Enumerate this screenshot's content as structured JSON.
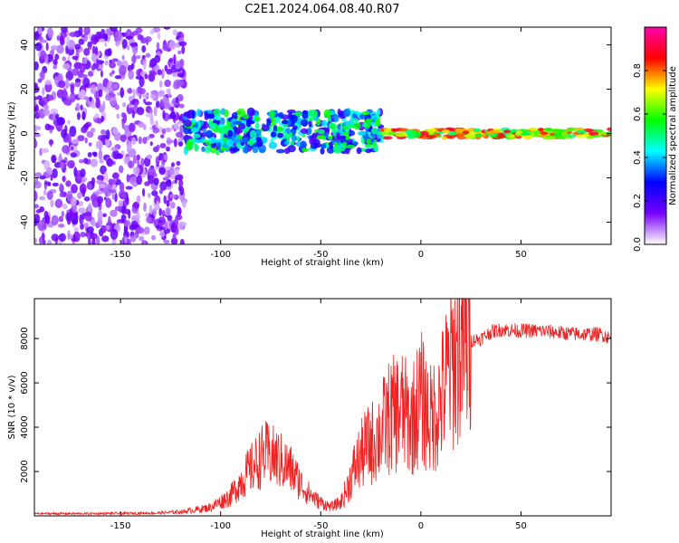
{
  "title": "C2E1.2024.064.08.40.R07",
  "chart_data": [
    {
      "type": "heatmap",
      "xlabel": "Height of straight line (km)",
      "ylabel": "Frequency (Hz)",
      "xlim": [
        -193,
        95
      ],
      "ylim": [
        -50,
        48
      ],
      "xticks": [
        -150,
        -100,
        -50,
        0,
        50
      ],
      "yticks": [
        -40,
        -20,
        0,
        20,
        40
      ],
      "grid": false,
      "colorbar": {
        "label": "Normalized spectral amplitude",
        "range": [
          0,
          1
        ],
        "ticks": [
          0.0,
          0.2,
          0.4,
          0.6,
          0.8
        ],
        "colors": [
          "#ffffff",
          "#7700ff",
          "#0000ff",
          "#00ffff",
          "#00ff00",
          "#ffff00",
          "#ff0000",
          "#ff00aa"
        ]
      },
      "regions": [
        {
          "x": [
            -193,
            -118
          ],
          "freq": [
            -50,
            48
          ],
          "amplitude": 0.1,
          "pattern": "noise"
        },
        {
          "x": [
            -118,
            -20
          ],
          "freq": [
            -8,
            10
          ],
          "amplitude": 0.35,
          "pattern": "band"
        },
        {
          "x": [
            -20,
            95
          ],
          "freq": [
            -2,
            2
          ],
          "amplitude": 0.7,
          "pattern": "carrier"
        }
      ]
    },
    {
      "type": "line",
      "xlabel": "Height of straight line (km)",
      "ylabel": "SNR (10 * v/v)",
      "xlim": [
        -193,
        95
      ],
      "ylim": [
        0,
        9800
      ],
      "xticks": [
        -150,
        -100,
        -50,
        0,
        50
      ],
      "yticks": [
        2000,
        4000,
        6000,
        8000
      ],
      "grid": false,
      "color": "#ee2222",
      "x": [
        -193,
        -170,
        -150,
        -130,
        -118,
        -105,
        -95,
        -88,
        -82,
        -78,
        -72,
        -65,
        -58,
        -52,
        -45,
        -40,
        -37,
        -33,
        -28,
        -22,
        -16,
        -10,
        -5,
        0,
        5,
        10,
        15,
        20,
        25,
        30,
        35,
        40,
        50,
        60,
        70,
        80,
        90,
        95
      ],
      "y": [
        100,
        100,
        110,
        130,
        200,
        380,
        900,
        1800,
        2400,
        2800,
        2600,
        2100,
        1200,
        700,
        400,
        600,
        1200,
        2200,
        3000,
        3500,
        4400,
        4800,
        4200,
        5300,
        4300,
        5200,
        6800,
        7600,
        7900,
        8000,
        8300,
        8400,
        8350,
        8350,
        8250,
        8200,
        8200,
        8000
      ]
    }
  ]
}
